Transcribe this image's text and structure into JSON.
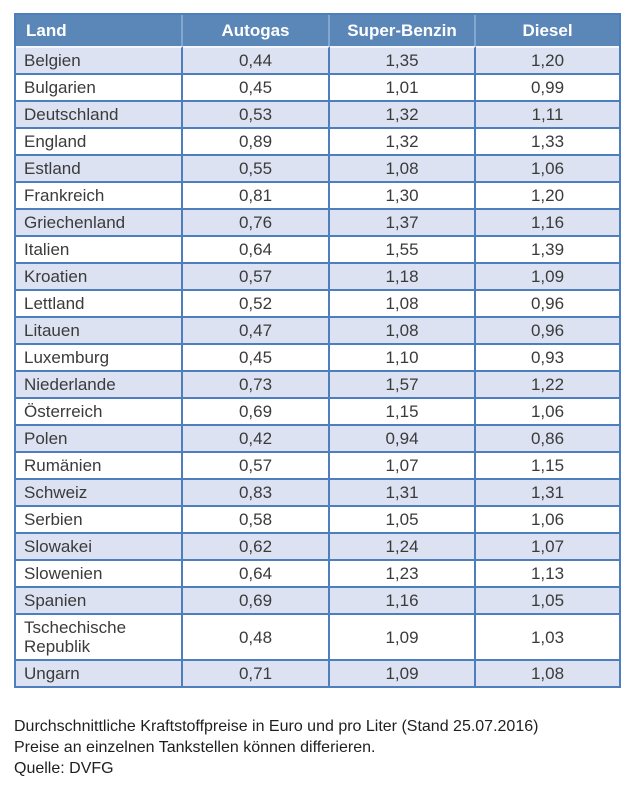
{
  "table": {
    "columns": [
      "Land",
      "Autogas",
      "Super-Benzin",
      "Diesel"
    ],
    "rows": [
      {
        "land": "Belgien",
        "autogas": "0,44",
        "super_benzin": "1,35",
        "diesel": "1,20"
      },
      {
        "land": "Bulgarien",
        "autogas": "0,45",
        "super_benzin": "1,01",
        "diesel": "0,99"
      },
      {
        "land": "Deutschland",
        "autogas": "0,53",
        "super_benzin": "1,32",
        "diesel": "1,11"
      },
      {
        "land": "England",
        "autogas": "0,89",
        "super_benzin": "1,32",
        "diesel": "1,33"
      },
      {
        "land": "Estland",
        "autogas": "0,55",
        "super_benzin": "1,08",
        "diesel": "1,06"
      },
      {
        "land": "Frankreich",
        "autogas": "0,81",
        "super_benzin": "1,30",
        "diesel": "1,20"
      },
      {
        "land": "Griechenland",
        "autogas": "0,76",
        "super_benzin": "1,37",
        "diesel": "1,16"
      },
      {
        "land": "Italien",
        "autogas": "0,64",
        "super_benzin": "1,55",
        "diesel": "1,39"
      },
      {
        "land": "Kroatien",
        "autogas": "0,57",
        "super_benzin": "1,18",
        "diesel": "1,09"
      },
      {
        "land": "Lettland",
        "autogas": "0,52",
        "super_benzin": "1,08",
        "diesel": "0,96"
      },
      {
        "land": "Litauen",
        "autogas": "0,47",
        "super_benzin": "1,08",
        "diesel": "0,96"
      },
      {
        "land": "Luxemburg",
        "autogas": "0,45",
        "super_benzin": "1,10",
        "diesel": "0,93"
      },
      {
        "land": "Niederlande",
        "autogas": "0,73",
        "super_benzin": "1,57",
        "diesel": "1,22"
      },
      {
        "land": "Österreich",
        "autogas": "0,69",
        "super_benzin": "1,15",
        "diesel": "1,06"
      },
      {
        "land": "Polen",
        "autogas": "0,42",
        "super_benzin": "0,94",
        "diesel": "0,86"
      },
      {
        "land": "Rumänien",
        "autogas": "0,57",
        "super_benzin": "1,07",
        "diesel": "1,15"
      },
      {
        "land": "Schweiz",
        "autogas": "0,83",
        "super_benzin": "1,31",
        "diesel": "1,31"
      },
      {
        "land": "Serbien",
        "autogas": "0,58",
        "super_benzin": "1,05",
        "diesel": "1,06"
      },
      {
        "land": "Slowakei",
        "autogas": "0,62",
        "super_benzin": "1,24",
        "diesel": "1,07"
      },
      {
        "land": "Slowenien",
        "autogas": "0,64",
        "super_benzin": "1,23",
        "diesel": "1,13"
      },
      {
        "land": "Spanien",
        "autogas": "0,69",
        "super_benzin": "1,16",
        "diesel": "1,05"
      },
      {
        "land": "Tschechische Republik",
        "autogas": "0,48",
        "super_benzin": "1,09",
        "diesel": "1,03"
      },
      {
        "land": "Ungarn",
        "autogas": "0,71",
        "super_benzin": "1,09",
        "diesel": "1,08"
      }
    ]
  },
  "chart_data": {
    "type": "table",
    "title": "Durchschnittliche Kraftstoffpreise in Euro und pro Liter (Stand 25.07.2016)",
    "columns": [
      "Land",
      "Autogas",
      "Super-Benzin",
      "Diesel"
    ],
    "categories": [
      "Belgien",
      "Bulgarien",
      "Deutschland",
      "England",
      "Estland",
      "Frankreich",
      "Griechenland",
      "Italien",
      "Kroatien",
      "Lettland",
      "Litauen",
      "Luxemburg",
      "Niederlande",
      "Österreich",
      "Polen",
      "Rumänien",
      "Schweiz",
      "Serbien",
      "Slowakei",
      "Slowenien",
      "Spanien",
      "Tschechische Republik",
      "Ungarn"
    ],
    "series": [
      {
        "name": "Autogas",
        "values": [
          0.44,
          0.45,
          0.53,
          0.89,
          0.55,
          0.81,
          0.76,
          0.64,
          0.57,
          0.52,
          0.47,
          0.45,
          0.73,
          0.69,
          0.42,
          0.57,
          0.83,
          0.58,
          0.62,
          0.64,
          0.69,
          0.48,
          0.71
        ]
      },
      {
        "name": "Super-Benzin",
        "values": [
          1.35,
          1.01,
          1.32,
          1.32,
          1.08,
          1.3,
          1.37,
          1.55,
          1.18,
          1.08,
          1.08,
          1.1,
          1.57,
          1.15,
          0.94,
          1.07,
          1.31,
          1.05,
          1.24,
          1.23,
          1.16,
          1.09,
          1.09
        ]
      },
      {
        "name": "Diesel",
        "values": [
          1.2,
          0.99,
          1.11,
          1.33,
          1.06,
          1.2,
          1.16,
          1.39,
          1.09,
          0.96,
          0.96,
          0.93,
          1.22,
          1.06,
          0.86,
          1.15,
          1.31,
          1.06,
          1.07,
          1.13,
          1.05,
          1.03,
          1.08
        ]
      }
    ],
    "unit": "Euro pro Liter",
    "source": "DVFG"
  },
  "footer": {
    "line1": "Durchschnittliche Kraftstoffpreise in Euro und pro Liter (Stand 25.07.2016)",
    "line2": "Preise an einzelnen Tankstellen können differieren.",
    "line3": "Quelle: DVFG"
  },
  "colors": {
    "header_bg": "#5b87b8",
    "header_text": "#ffffff",
    "row_alt_bg": "#dce2f1",
    "row_bg": "#ffffff",
    "border": "#4d7ebd",
    "cell_text": "#3b3b3b"
  }
}
